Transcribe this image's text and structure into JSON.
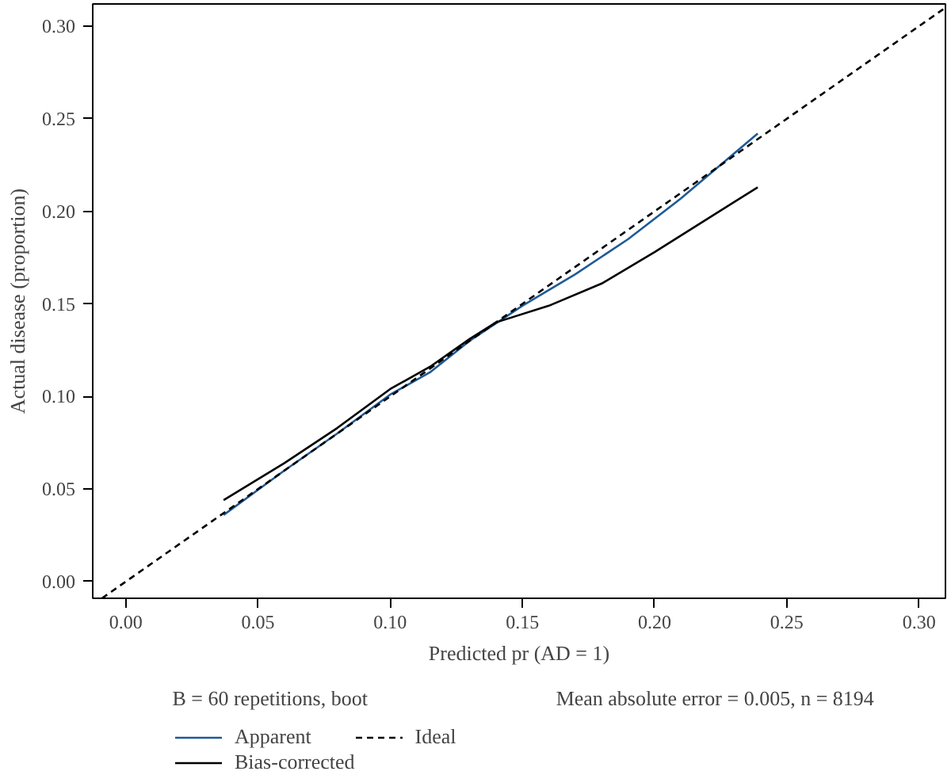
{
  "chart_data": {
    "type": "line",
    "xlabel": "Predicted pr (AD = 1)",
    "ylabel": "Actual disease (proportion)",
    "xlim": [
      -0.0125,
      0.31
    ],
    "ylim": [
      -0.009,
      0.312
    ],
    "xticks": [
      {
        "value": 0,
        "label": "0.00"
      },
      0.05,
      {
        "value": 0.1,
        "label": "0.10"
      },
      0.15,
      {
        "value": 0.2,
        "label": "0.20"
      },
      0.25,
      {
        "value": 0.3,
        "label": "0.30"
      }
    ],
    "yticks": [
      {
        "value": 0,
        "label": "0.00"
      },
      0.05,
      {
        "value": 0.1,
        "label": "0.10"
      },
      0.15,
      {
        "value": 0.2,
        "label": "0.20"
      },
      0.25,
      {
        "value": 0.3,
        "label": "0.30"
      }
    ],
    "grid": false,
    "legend": "bottom",
    "annotations": [
      "B = 60 repetitions, boot",
      "Mean absolute error = 0.005, n = 8194"
    ],
    "series": [
      {
        "name": "Apparent",
        "color": "#1f5a96",
        "line_style": "solid",
        "x": [
          0.037,
          0.06,
          0.08,
          0.1,
          0.115,
          0.13,
          0.15,
          0.17,
          0.19,
          0.21,
          0.239
        ],
        "values": [
          0.036,
          0.06,
          0.08,
          0.101,
          0.113,
          0.13,
          0.149,
          0.166,
          0.185,
          0.207,
          0.242
        ]
      },
      {
        "name": "Bias-corrected",
        "color": "#000000",
        "line_style": "solid",
        "x": [
          0.037,
          0.06,
          0.08,
          0.1,
          0.115,
          0.13,
          0.14,
          0.16,
          0.18,
          0.2,
          0.22,
          0.239
        ],
        "values": [
          0.044,
          0.064,
          0.083,
          0.104,
          0.116,
          0.131,
          0.14,
          0.149,
          0.161,
          0.178,
          0.196,
          0.213
        ]
      },
      {
        "name": "Ideal",
        "color": "#000000",
        "line_style": "dashed",
        "x": [
          -0.009,
          0.31
        ],
        "values": [
          -0.009,
          0.31
        ]
      }
    ]
  }
}
